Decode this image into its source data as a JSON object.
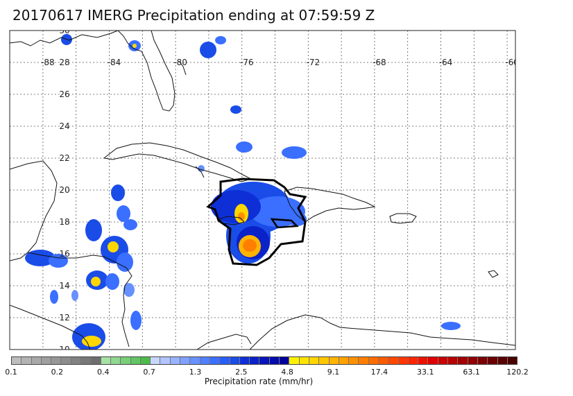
{
  "title": "20170617 IMERG Precipitation ending at 07:59:59 Z",
  "map": {
    "lon_labels": [
      "-88",
      "-84",
      "-80",
      "-76",
      "-72",
      "-68",
      "-64",
      "-60"
    ],
    "lat_labels": [
      "30",
      "28",
      "26",
      "24",
      "22",
      "20",
      "18",
      "16",
      "14",
      "12",
      "10"
    ],
    "lon_range": [
      -89,
      -60
    ],
    "lat_range": [
      9.5,
      30
    ]
  },
  "colorbar": {
    "tick_labels": [
      "0.1",
      "0.2",
      "0.4",
      "0.7",
      "1.3",
      "2.5",
      "4.8",
      "9.1",
      "17.4",
      "33.1",
      "63.1",
      "120.2"
    ],
    "label": "Precipitation rate (mm/hr)",
    "colors": [
      "#bdbdbd",
      "#b3b3b3",
      "#a9a9a9",
      "#9f9f9f",
      "#969696",
      "#8c8c8c",
      "#828282",
      "#787878",
      "#6e6e6e",
      "#a6e2a6",
      "#8fd88f",
      "#78cf78",
      "#62c562",
      "#4bbb4b",
      "#c9d6ff",
      "#b1c4ff",
      "#98b3ff",
      "#80a2ff",
      "#6891ff",
      "#4f80ff",
      "#3a6fff",
      "#2a5df5",
      "#1a4ce8",
      "#0e2fd6",
      "#0a22c8",
      "#0616ba",
      "#030bac",
      "#00009e",
      "#fff200",
      "#ffe400",
      "#ffd700",
      "#ffc600",
      "#ffb400",
      "#ffa200",
      "#ff9000",
      "#ff7e00",
      "#ff6c00",
      "#ff5a00",
      "#ff4800",
      "#ff3600",
      "#ff2400",
      "#f01000",
      "#e00000",
      "#cc0000",
      "#b80000",
      "#a40000",
      "#900000",
      "#7c0000",
      "#6a0000",
      "#5a0000",
      "#4a0000"
    ]
  }
}
